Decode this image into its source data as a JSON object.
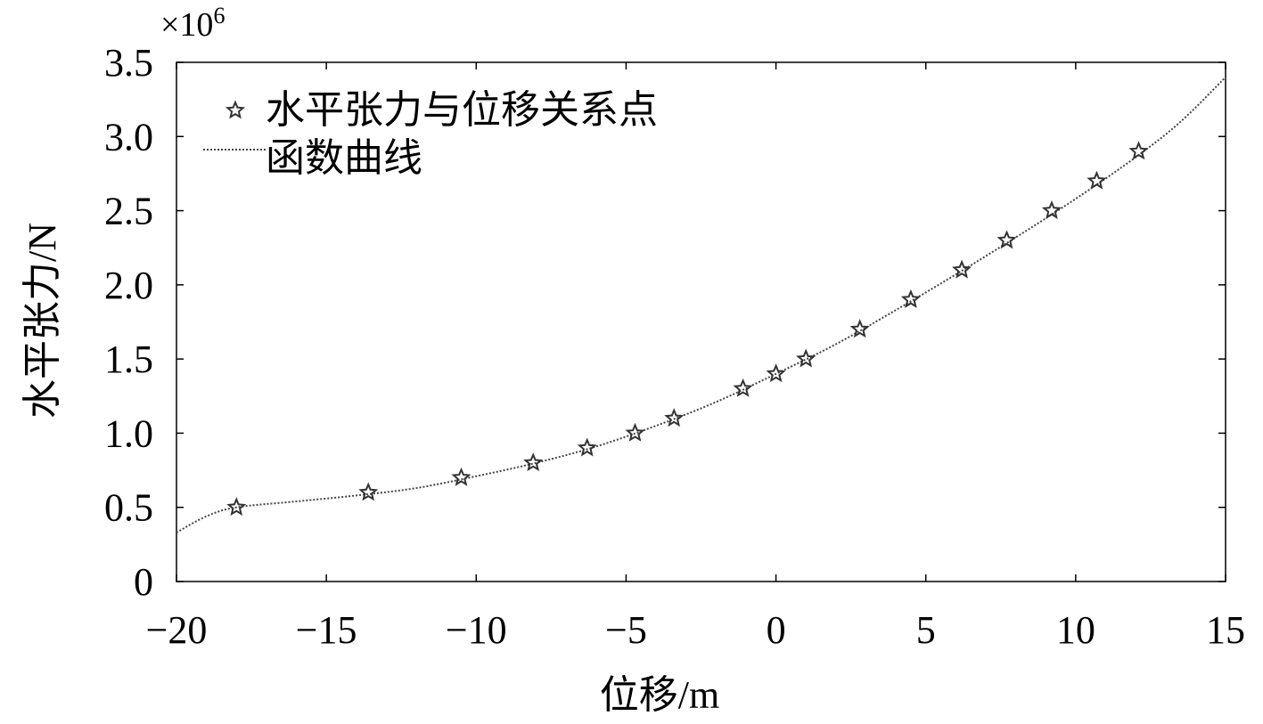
{
  "chart_data": {
    "type": "scatter",
    "title": "",
    "xlabel": "位移/m",
    "ylabel": "水平张力/N",
    "y_multiplier_label": "×10",
    "y_multiplier_exp": "6",
    "xlim": [
      -20,
      15
    ],
    "ylim": [
      0,
      3.5
    ],
    "xticks": [
      -20,
      -15,
      -10,
      -5,
      0,
      5,
      10,
      15
    ],
    "xtick_labels": [
      "−20",
      "−15",
      "−10",
      "−5",
      "0",
      "5",
      "10",
      "15"
    ],
    "yticks": [
      0,
      0.5,
      1.0,
      1.5,
      2.0,
      2.5,
      3.0,
      3.5
    ],
    "ytick_labels": [
      "0",
      "0.5",
      "1.0",
      "1.5",
      "2.0",
      "2.5",
      "3.0",
      "3.5"
    ],
    "grid": false,
    "legend_position": "top-left",
    "series": [
      {
        "name": "水平张力与位移关系点",
        "kind": "scatter",
        "marker": "star",
        "x": [
          -18.0,
          -13.6,
          -10.5,
          -8.1,
          -6.3,
          -4.7,
          -3.4,
          -1.1,
          0.0,
          1.0,
          2.8,
          4.5,
          6.2,
          7.7,
          9.2,
          10.7,
          12.1
        ],
        "y": [
          0.5,
          0.6,
          0.7,
          0.8,
          0.9,
          1.0,
          1.1,
          1.3,
          1.4,
          1.5,
          1.7,
          1.9,
          2.1,
          2.3,
          2.5,
          2.7,
          2.9
        ]
      },
      {
        "name": "函数曲线",
        "kind": "line",
        "style": "dotted",
        "x": [
          -20,
          -19,
          -18,
          -16,
          -14,
          -12,
          -10,
          -8,
          -6,
          -4,
          -2,
          0,
          2,
          4,
          6,
          8,
          10,
          12,
          13.5,
          15
        ],
        "y": [
          0.33,
          0.44,
          0.5,
          0.54,
          0.58,
          0.63,
          0.71,
          0.8,
          0.91,
          1.05,
          1.21,
          1.4,
          1.6,
          1.83,
          2.07,
          2.32,
          2.58,
          2.86,
          3.1,
          3.4
        ]
      }
    ],
    "colors": {
      "marker": "#333333",
      "line": "#444444",
      "axis": "#000000"
    }
  }
}
